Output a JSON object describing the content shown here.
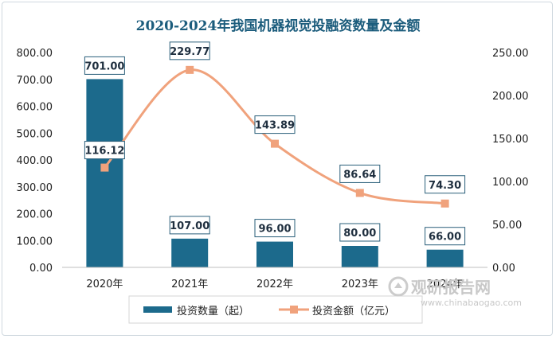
{
  "chart_data": {
    "type": "bar+line",
    "title": "2020-2024年我国机器视觉投融资数量及金额",
    "categories": [
      "2020年",
      "2021年",
      "2022年",
      "2023年",
      "2024年"
    ],
    "series": [
      {
        "name": "投资数量（起）",
        "type": "bar",
        "axis": "left",
        "color": "#1c6a8c",
        "values": [
          701.0,
          107.0,
          96.0,
          80.0,
          66.0
        ],
        "labels": [
          "701.00",
          "107.00",
          "96.00",
          "80.00",
          "66.00"
        ]
      },
      {
        "name": "投资金额（亿元）",
        "type": "line",
        "axis": "right",
        "color": "#f0a27c",
        "values": [
          116.12,
          229.77,
          143.89,
          86.64,
          74.3
        ],
        "labels": [
          "116.12",
          "229.77",
          "143.89",
          "86.64",
          "74.30"
        ]
      }
    ],
    "y_left": {
      "range": [
        0,
        800
      ],
      "ticks": [
        "0.00",
        "100.00",
        "200.00",
        "300.00",
        "400.00",
        "500.00",
        "600.00",
        "700.00",
        "800.00"
      ]
    },
    "y_right": {
      "range": [
        0,
        250
      ],
      "ticks": [
        "0.00",
        "50.00",
        "100.00",
        "150.00",
        "200.00",
        "250.00"
      ]
    },
    "grid": false,
    "legend_position": "bottom-center"
  },
  "watermark": {
    "main": "观研报告网",
    "sub": "www.chinabaogao.com"
  }
}
